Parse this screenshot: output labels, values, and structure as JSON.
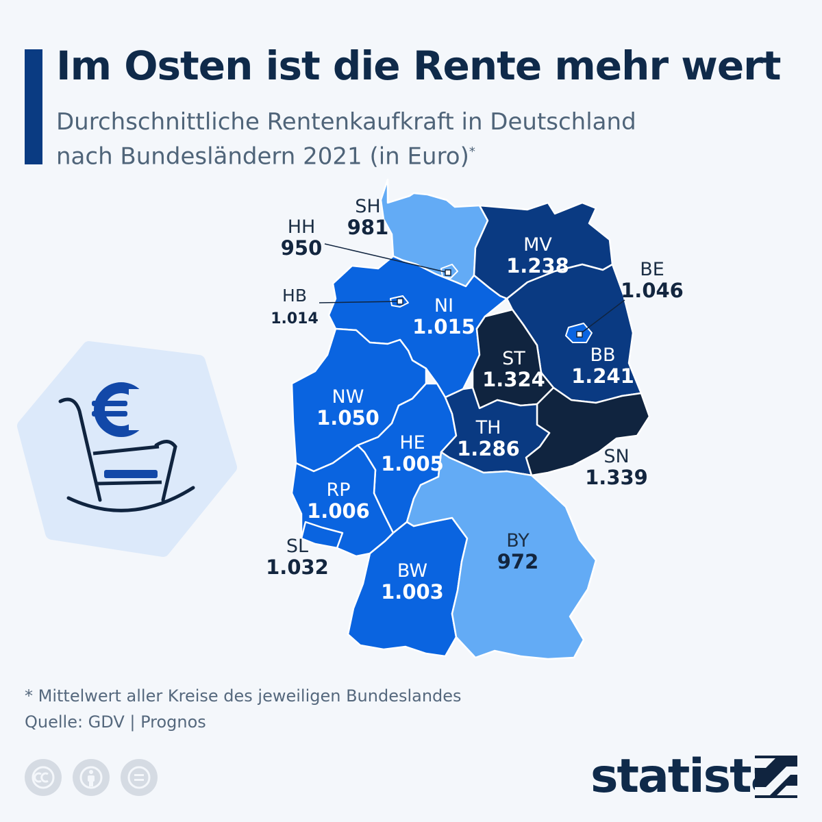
{
  "header": {
    "title": "Im Osten ist die Rente mehr wert",
    "subtitle_line1": "Durchschnittliche Rentenkaufkraft in Deutschland",
    "subtitle_line2": "nach Bundesländern 2021 (in Euro)",
    "subtitle_marker": "*"
  },
  "map": {
    "colors": {
      "light": "#63abf5",
      "medium": "#0a64e0",
      "dark": "#0a3a82",
      "darkest": "#10243f",
      "border": "#ffffff"
    },
    "regions": [
      {
        "code": "SH",
        "value": "981",
        "shade": "light"
      },
      {
        "code": "HH",
        "value": "950",
        "shade": "light"
      },
      {
        "code": "HB",
        "value": "1.014",
        "shade": "medium"
      },
      {
        "code": "NI",
        "value": "1.015",
        "shade": "medium"
      },
      {
        "code": "MV",
        "value": "1.238",
        "shade": "dark"
      },
      {
        "code": "BE",
        "value": "1.046",
        "shade": "medium"
      },
      {
        "code": "BB",
        "value": "1.241",
        "shade": "dark"
      },
      {
        "code": "ST",
        "value": "1.324",
        "shade": "darkest"
      },
      {
        "code": "NW",
        "value": "1.050",
        "shade": "medium"
      },
      {
        "code": "HE",
        "value": "1.005",
        "shade": "medium"
      },
      {
        "code": "TH",
        "value": "1.286",
        "shade": "dark"
      },
      {
        "code": "SN",
        "value": "1.339",
        "shade": "darkest"
      },
      {
        "code": "RP",
        "value": "1.006",
        "shade": "medium"
      },
      {
        "code": "SL",
        "value": "1.032",
        "shade": "medium"
      },
      {
        "code": "BW",
        "value": "1.003",
        "shade": "medium"
      },
      {
        "code": "BY",
        "value": "972",
        "shade": "light"
      }
    ]
  },
  "illustration": {
    "icon": "rocking-chair-euro-icon"
  },
  "footer": {
    "footnote": "* Mittelwert aller Kreise des jeweiligen Bundeslandes",
    "source": "Quelle: GDV | Prognos",
    "license_icons": [
      "cc-icon",
      "attribution-icon",
      "no-derivatives-icon"
    ],
    "brand": "statista"
  }
}
